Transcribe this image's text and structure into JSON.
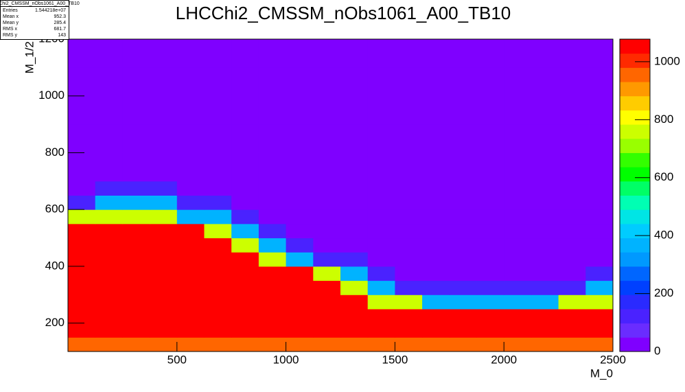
{
  "chart_data": {
    "type": "heatmap",
    "title": "LHCChi2_CMSSM_nObs1061_A00_TB10",
    "xlabel": "M_0",
    "ylabel": "M_1/2",
    "xlim": [
      0,
      2500
    ],
    "xticks": [
      500,
      1000,
      1500,
      2000,
      2500
    ],
    "ylim": [
      100,
      1200
    ],
    "yticks": [
      200,
      400,
      600,
      800,
      1000,
      1200
    ],
    "zlim": [
      0,
      1078
    ],
    "zticks": [
      0,
      200,
      400,
      600,
      800,
      1000
    ],
    "palette": [
      "#7f00ff",
      "#6a2cff",
      "#4a22ff",
      "#2a2aff",
      "#0040ff",
      "#0066ff",
      "#0099ff",
      "#00b3ff",
      "#00ccff",
      "#00e5e5",
      "#00ffb3",
      "#00ff66",
      "#00ff00",
      "#33ff00",
      "#99ff00",
      "#ccff00",
      "#ffff00",
      "#ffcc00",
      "#ff9900",
      "#ff6600",
      "#ff2a00",
      "#ff0000"
    ],
    "xbins": [
      0,
      125,
      250,
      375,
      500,
      625,
      750,
      875,
      1000,
      1125,
      1250,
      1375,
      1500,
      1625,
      1750,
      1875,
      2000,
      2125,
      2250,
      2375,
      2500
    ],
    "ybins": [
      100,
      150,
      200,
      250,
      300,
      350,
      400,
      450,
      500,
      550,
      600,
      650,
      700,
      750,
      800,
      850,
      900,
      950,
      1000,
      1050,
      1100,
      1150,
      1200
    ],
    "z": [
      [
        950,
        950,
        950,
        950,
        950,
        950,
        950,
        950,
        950,
        950,
        950,
        950,
        950,
        950,
        950,
        950,
        950,
        950,
        950,
        950
      ],
      [
        1050,
        1050,
        1050,
        1050,
        1050,
        1050,
        1050,
        1050,
        1050,
        1050,
        1050,
        1050,
        1050,
        1050,
        1050,
        1050,
        1050,
        1050,
        1050,
        1050
      ],
      [
        1050,
        1050,
        1050,
        1050,
        1050,
        1050,
        1050,
        1050,
        1050,
        1050,
        1050,
        1050,
        1050,
        1050,
        1050,
        1050,
        1050,
        1050,
        1050,
        1050
      ],
      [
        1050,
        1050,
        1050,
        1050,
        1050,
        1050,
        1050,
        1050,
        1050,
        1050,
        1050,
        750,
        750,
        350,
        350,
        350,
        350,
        350,
        750,
        750
      ],
      [
        1050,
        1050,
        1050,
        1050,
        1050,
        1050,
        1050,
        1050,
        1050,
        1050,
        750,
        350,
        120,
        120,
        120,
        120,
        120,
        120,
        120,
        350
      ],
      [
        1050,
        1050,
        1050,
        1050,
        1050,
        1050,
        1050,
        1050,
        1050,
        750,
        350,
        120,
        30,
        30,
        30,
        30,
        30,
        30,
        30,
        120
      ],
      [
        1050,
        1050,
        1050,
        1050,
        1050,
        1050,
        1050,
        750,
        350,
        120,
        120,
        30,
        30,
        30,
        30,
        30,
        30,
        30,
        30,
        30
      ],
      [
        1050,
        1050,
        1050,
        1050,
        1050,
        1050,
        750,
        350,
        120,
        30,
        30,
        30,
        30,
        30,
        30,
        30,
        30,
        30,
        30,
        30
      ],
      [
        1050,
        1050,
        1050,
        1050,
        1050,
        750,
        350,
        120,
        30,
        30,
        30,
        30,
        30,
        30,
        30,
        30,
        30,
        30,
        30,
        30
      ],
      [
        750,
        750,
        750,
        750,
        350,
        350,
        120,
        30,
        30,
        30,
        30,
        30,
        30,
        30,
        30,
        30,
        30,
        30,
        30,
        30
      ],
      [
        120,
        350,
        350,
        350,
        120,
        120,
        30,
        30,
        30,
        30,
        30,
        30,
        30,
        30,
        30,
        30,
        30,
        30,
        30,
        30
      ],
      [
        30,
        120,
        120,
        120,
        30,
        30,
        30,
        30,
        30,
        30,
        30,
        30,
        30,
        30,
        30,
        30,
        30,
        30,
        30,
        30
      ],
      [
        30,
        30,
        30,
        30,
        30,
        30,
        30,
        30,
        30,
        30,
        30,
        30,
        30,
        30,
        30,
        30,
        30,
        30,
        30,
        30
      ],
      [
        30,
        30,
        30,
        30,
        30,
        30,
        30,
        30,
        30,
        30,
        30,
        30,
        30,
        30,
        30,
        30,
        30,
        30,
        30,
        30
      ],
      [
        30,
        30,
        30,
        30,
        30,
        30,
        30,
        30,
        30,
        30,
        30,
        30,
        30,
        30,
        30,
        30,
        30,
        30,
        30,
        30
      ],
      [
        30,
        30,
        30,
        30,
        30,
        30,
        30,
        30,
        30,
        30,
        30,
        30,
        30,
        30,
        30,
        30,
        30,
        30,
        30,
        30
      ],
      [
        30,
        30,
        30,
        30,
        30,
        30,
        30,
        30,
        30,
        30,
        30,
        30,
        30,
        30,
        30,
        30,
        30,
        30,
        30,
        30
      ],
      [
        30,
        30,
        30,
        30,
        30,
        30,
        30,
        30,
        30,
        30,
        30,
        30,
        30,
        30,
        30,
        30,
        30,
        30,
        30,
        30
      ],
      [
        30,
        30,
        30,
        30,
        30,
        30,
        30,
        30,
        30,
        30,
        30,
        30,
        30,
        30,
        30,
        30,
        30,
        30,
        30,
        30
      ],
      [
        30,
        30,
        30,
        30,
        30,
        30,
        30,
        30,
        30,
        30,
        30,
        30,
        30,
        30,
        30,
        30,
        30,
        30,
        30,
        30
      ],
      [
        30,
        30,
        30,
        30,
        30,
        30,
        30,
        30,
        30,
        30,
        30,
        30,
        30,
        30,
        30,
        30,
        30,
        30,
        30,
        30
      ],
      [
        30,
        30,
        30,
        30,
        30,
        30,
        30,
        30,
        30,
        30,
        30,
        30,
        30,
        30,
        30,
        30,
        30,
        30,
        30,
        30
      ]
    ],
    "stats": {
      "title": "LHCChi2_CMSSM_nObs1061_A00_TB10",
      "rows": [
        [
          "Entries",
          "1.544218e+07"
        ],
        [
          "Mean x",
          "952.3"
        ],
        [
          "Mean y",
          "285.4"
        ],
        [
          "RMS x",
          "681.7"
        ],
        [
          "RMS y",
          "143"
        ]
      ]
    }
  }
}
